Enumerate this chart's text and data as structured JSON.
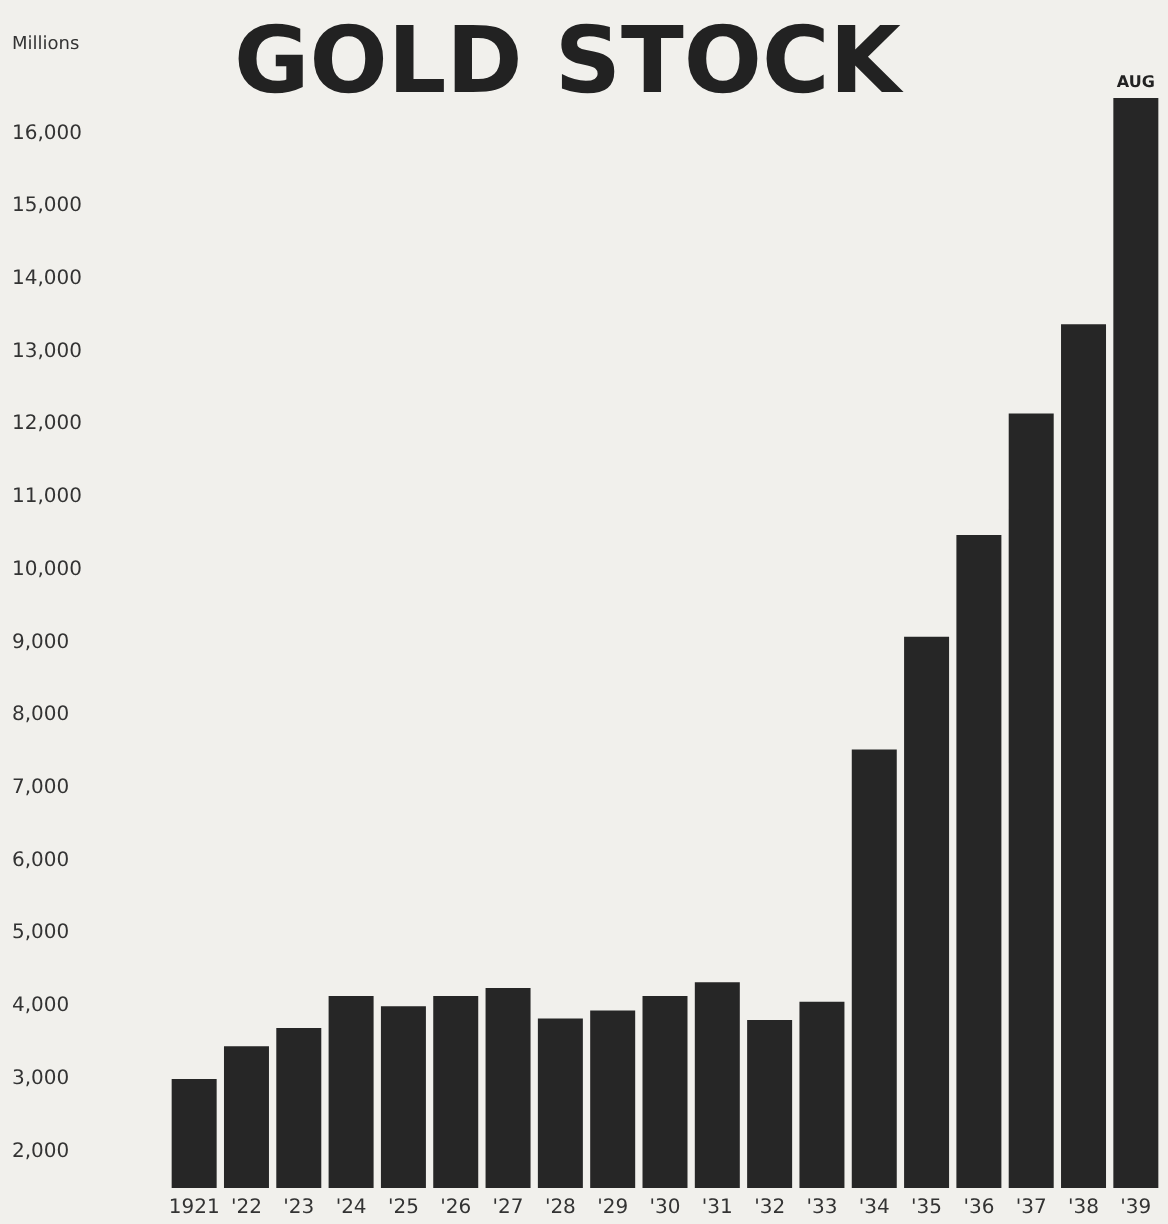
{
  "chart_data": {
    "type": "bar",
    "title": "GOLD STOCK",
    "ylabel": "Millions",
    "categories": [
      "1921",
      "'22",
      "'23",
      "'24",
      "'25",
      "'26",
      "'27",
      "'28",
      "'29",
      "'30",
      "'31",
      "'32",
      "'33",
      "'34",
      "'35",
      "'36",
      "'37",
      "'38",
      "'39"
    ],
    "values": [
      3000,
      3450,
      3700,
      4140,
      4000,
      4140,
      4250,
      3830,
      3940,
      4140,
      4330,
      3810,
      4060,
      7530,
      9080,
      10480,
      12150,
      13380,
      16490
    ],
    "color": "#262626",
    "ylim": [
      1500,
      16600
    ],
    "yticks": [
      {
        "value": 2000,
        "label": "2,000"
      },
      {
        "value": 3000,
        "label": "3,000"
      },
      {
        "value": 4000,
        "label": "4,000"
      },
      {
        "value": 5000,
        "label": "5,000"
      },
      {
        "value": 6000,
        "label": "6,000"
      },
      {
        "value": 7000,
        "label": "7,000"
      },
      {
        "value": 8000,
        "label": "8,000"
      },
      {
        "value": 9000,
        "label": "9,000"
      },
      {
        "value": 10000,
        "label": "10,000"
      },
      {
        "value": 11000,
        "label": "11,000"
      },
      {
        "value": 12000,
        "label": "12,000"
      },
      {
        "value": 13000,
        "label": "13,000"
      },
      {
        "value": 14000,
        "label": "14,000"
      },
      {
        "value": 15000,
        "label": "15,000"
      },
      {
        "value": 16000,
        "label": "16,000"
      }
    ],
    "annotations": [
      {
        "text": "AUG",
        "x": "'39",
        "y": 16490
      }
    ],
    "grid": false
  }
}
